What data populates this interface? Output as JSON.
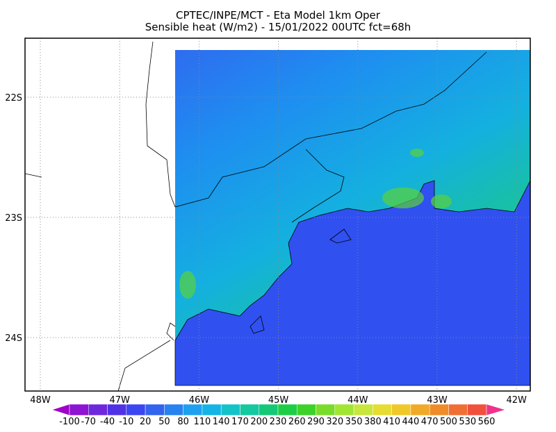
{
  "header": {
    "title": "CPTEC/INPE/MCT -  Eta Model 1km Oper",
    "subtitle": "Sensible heat (W/m2) - 15/01/2022 00UTC fct=68h"
  },
  "map": {
    "lon_labels": [
      "48W",
      "47W",
      "46W",
      "45W",
      "44W",
      "43W",
      "42W"
    ],
    "lat_labels": [
      "22S",
      "23S",
      "24S"
    ]
  },
  "colorbar": {
    "labels": [
      -100,
      -70,
      -40,
      -10,
      20,
      50,
      80,
      110,
      140,
      170,
      200,
      230,
      260,
      290,
      320,
      350,
      380,
      410,
      440,
      470,
      500,
      530,
      560
    ],
    "colors": [
      "#a000c8",
      "#8c14d2",
      "#6e28dc",
      "#5032e6",
      "#3c46f0",
      "#3264f0",
      "#2882f0",
      "#1ea0f0",
      "#14b4e6",
      "#14c3c8",
      "#14c8a0",
      "#14c878",
      "#1ecd46",
      "#3cd228",
      "#78dc28",
      "#a0e632",
      "#c8e63c",
      "#e6dc32",
      "#f0c828",
      "#f0aa28",
      "#f08c28",
      "#f06e32",
      "#f0503c",
      "#f0328c"
    ]
  }
}
